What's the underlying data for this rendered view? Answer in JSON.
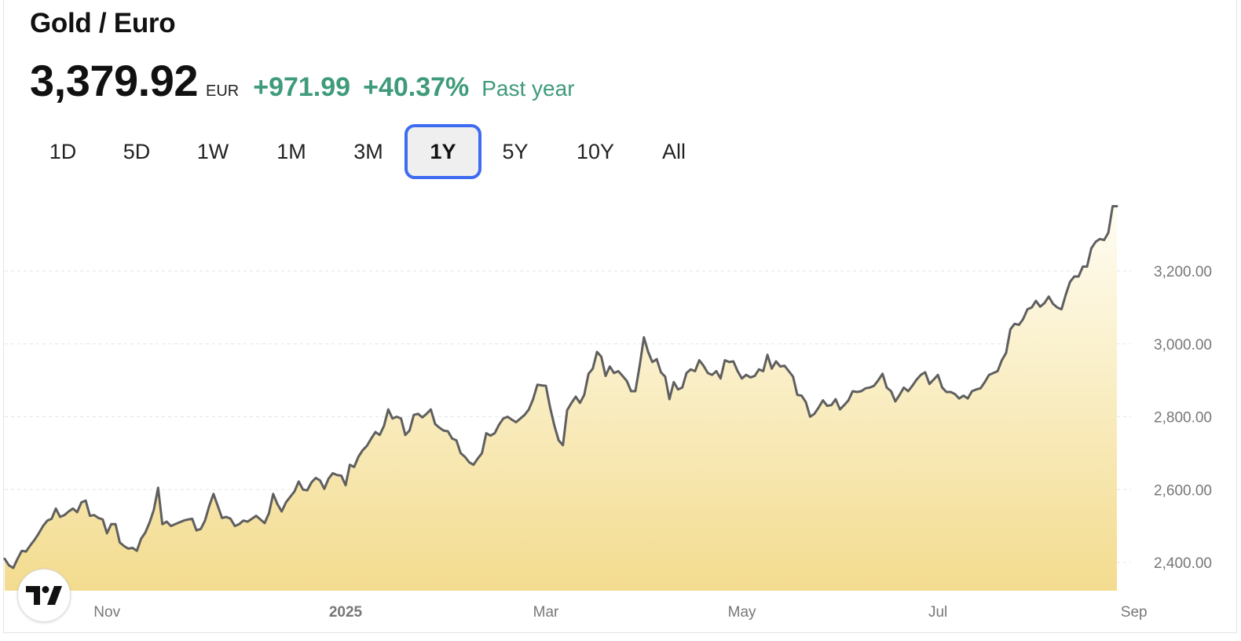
{
  "header": {
    "title": "Gold / Euro",
    "price": "3,379.92",
    "currency": "EUR",
    "change": "+971.99",
    "change_pct": "+40.37%",
    "period": "Past year"
  },
  "colors": {
    "positive": "#3f9b7a",
    "accent": "#3d6cf0",
    "line": "#5f5f5f",
    "area_top": "#fffdf3",
    "area_bottom": "#f3dc8f"
  },
  "tabs": [
    {
      "label": "1D",
      "active": false
    },
    {
      "label": "5D",
      "active": false
    },
    {
      "label": "1W",
      "active": false
    },
    {
      "label": "1M",
      "active": false
    },
    {
      "label": "3M",
      "active": false
    },
    {
      "label": "1Y",
      "active": true
    },
    {
      "label": "5Y",
      "active": false
    },
    {
      "label": "10Y",
      "active": false
    },
    {
      "label": "All",
      "active": false
    }
  ],
  "logo": {
    "icon": "tradingview-logo-icon"
  },
  "chart_data": {
    "type": "area",
    "series": [
      {
        "values": [
          2410,
          2392,
          2385,
          2410,
          2432,
          2430,
          2447,
          2462,
          2480,
          2500,
          2515,
          2520,
          2548,
          2525,
          2530,
          2540,
          2548,
          2538,
          2565,
          2570,
          2528,
          2530,
          2522,
          2518,
          2480,
          2505,
          2505,
          2455,
          2445,
          2438,
          2440,
          2432,
          2465,
          2482,
          2510,
          2545,
          2605,
          2505,
          2512,
          2500,
          2505,
          2510,
          2515,
          2518,
          2520,
          2488,
          2492,
          2515,
          2555,
          2588,
          2555,
          2522,
          2525,
          2520,
          2500,
          2505,
          2515,
          2512,
          2520,
          2528,
          2518,
          2508,
          2535,
          2588,
          2560,
          2540,
          2565,
          2580,
          2595,
          2622,
          2600,
          2598,
          2620,
          2632,
          2625,
          2602,
          2630,
          2645,
          2640,
          2638,
          2612,
          2668,
          2662,
          2690,
          2708,
          2720,
          2740,
          2758,
          2750,
          2775,
          2820,
          2795,
          2800,
          2795,
          2750,
          2762,
          2805,
          2808,
          2798,
          2808,
          2820,
          2780,
          2770,
          2762,
          2760,
          2740,
          2735,
          2700,
          2690,
          2675,
          2668,
          2685,
          2700,
          2755,
          2748,
          2755,
          2778,
          2795,
          2800,
          2792,
          2785,
          2795,
          2805,
          2820,
          2848,
          2888,
          2886,
          2885,
          2825,
          2775,
          2735,
          2722,
          2818,
          2838,
          2855,
          2838,
          2860,
          2918,
          2932,
          2978,
          2965,
          2912,
          2938,
          2920,
          2925,
          2912,
          2898,
          2870,
          2870,
          2940,
          3018,
          2978,
          2950,
          2958,
          2922,
          2910,
          2848,
          2895,
          2875,
          2880,
          2920,
          2930,
          2925,
          2955,
          2940,
          2920,
          2915,
          2925,
          2905,
          2955,
          2950,
          2952,
          2925,
          2905,
          2915,
          2908,
          2912,
          2930,
          2925,
          2970,
          2932,
          2952,
          2938,
          2940,
          2925,
          2910,
          2860,
          2858,
          2840,
          2800,
          2808,
          2825,
          2845,
          2830,
          2832,
          2848,
          2820,
          2832,
          2845,
          2870,
          2868,
          2870,
          2878,
          2880,
          2885,
          2900,
          2918,
          2880,
          2870,
          2842,
          2860,
          2880,
          2870,
          2885,
          2902,
          2915,
          2922,
          2890,
          2902,
          2915,
          2880,
          2868,
          2868,
          2862,
          2850,
          2858,
          2850,
          2870,
          2875,
          2878,
          2895,
          2915,
          2920,
          2925,
          2955,
          2975,
          3040,
          3055,
          3052,
          3068,
          3095,
          3100,
          3118,
          3102,
          3112,
          3130,
          3110,
          3100,
          3095,
          3135,
          3170,
          3185,
          3185,
          3212,
          3212,
          3262,
          3280,
          3288,
          3285,
          3305,
          3378,
          3378
        ]
      }
    ],
    "x_tick_labels": [
      "Nov",
      "2025",
      "Mar",
      "May",
      "Jul",
      "Sep"
    ],
    "x_tick_indices": [
      24,
      80,
      127,
      173,
      219,
      265
    ],
    "y_ticks": [
      2400,
      2600,
      2800,
      3000,
      3200
    ],
    "y_tick_labels": [
      "2,400.00",
      "2,600.00",
      "2,800.00",
      "3,000.00",
      "3,200.00"
    ],
    "ylim": [
      2326,
      3500
    ],
    "grid": true,
    "y_axis_position": "right"
  }
}
